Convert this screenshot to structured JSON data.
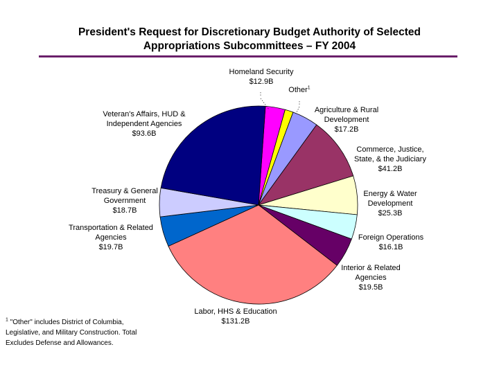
{
  "chart_data": {
    "type": "pie",
    "title_line1": "President's Request for Discretionary Budget Authority of Selected",
    "title_line2": "Appropriations Subcommittees – FY 2004",
    "slices": [
      {
        "name": "Homeland Security",
        "value": 12.9,
        "label": "$12.9B",
        "color": "#ff00ff"
      },
      {
        "name": "Other",
        "value": 5.4,
        "label": "",
        "color": "#ffff00"
      },
      {
        "name": "Agriculture & Rural Development",
        "value": 17.2,
        "label": "$17.2B",
        "color": "#9999ff"
      },
      {
        "name": "Commerce, Justice, State, & the Judiciary",
        "value": 41.2,
        "label": "$41.2B",
        "color": "#993366"
      },
      {
        "name": "Energy & Water Development",
        "value": 25.3,
        "label": "$25.3B",
        "color": "#ffffcc"
      },
      {
        "name": "Foreign Operations",
        "value": 16.1,
        "label": "$16.1B",
        "color": "#ccffff"
      },
      {
        "name": "Interior & Related Agencies",
        "value": 19.5,
        "label": "$19.5B",
        "color": "#660066"
      },
      {
        "name": "Labor, HHS & Education",
        "value": 131.2,
        "label": "$131.2B",
        "color": "#ff8080"
      },
      {
        "name": "Transportation & Related Agencies",
        "value": 19.7,
        "label": "$19.7B",
        "color": "#0066cc"
      },
      {
        "name": "Treasury & General Government",
        "value": 18.7,
        "label": "$18.7B",
        "color": "#ccccff"
      },
      {
        "name": "Veteran's Affairs, HUD & Independent Agencies",
        "value": 93.6,
        "label": "$93.6B",
        "color": "#000080"
      }
    ]
  },
  "labels": {
    "homeland": {
      "l1": "Homeland Security",
      "l2": "$12.9B"
    },
    "other": {
      "l1": "Other",
      "sup": "1"
    },
    "agriculture": {
      "l1": "Agriculture & Rural",
      "l2": "Development",
      "l3": "$17.2B"
    },
    "commerce": {
      "l1": "Commerce, Justice,",
      "l2": "State, & the Judiciary",
      "l3": "$41.2B"
    },
    "energy": {
      "l1": "Energy & Water",
      "l2": "Development",
      "l3": "$25.3B"
    },
    "foreign": {
      "l1": "Foreign Operations",
      "l2": "$16.1B"
    },
    "interior": {
      "l1": "Interior & Related",
      "l2": "Agencies",
      "l3": "$19.5B"
    },
    "labor": {
      "l1": "Labor, HHS & Education",
      "l2": "$131.2B"
    },
    "transportation": {
      "l1": "Transportation & Related",
      "l2": "Agencies",
      "l3": "$19.7B"
    },
    "treasury": {
      "l1": "Treasury & General",
      "l2": "Government",
      "l3": "$18.7B"
    },
    "veterans": {
      "l1": "Veteran's Affairs, HUD &",
      "l2": "Independent Agencies",
      "l3": "$93.6B"
    }
  },
  "footnote": {
    "sup": "1",
    "line1": " \"Other\" includes District of Columbia,",
    "line2": "Legislative, and Military Construction.  Total",
    "line3": "Excludes Defense and Allowances."
  }
}
